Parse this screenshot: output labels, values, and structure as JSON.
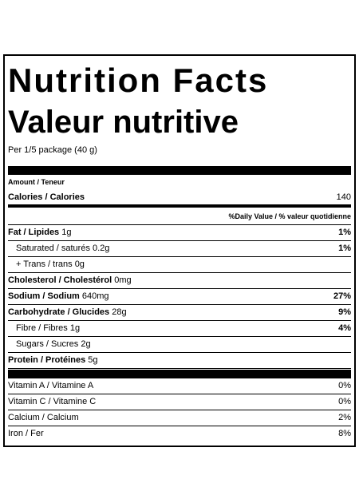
{
  "header": {
    "title": "Nutrition Facts",
    "title_fr": "Valeur nutritive",
    "serving": "Per 1/5 package (40 g)"
  },
  "amount_header": "Amount / Teneur",
  "calories": {
    "label": "Calories / Calories",
    "value": "140"
  },
  "dv_header": "%Daily Value / % valeur quotidienne",
  "nutrients": [
    {
      "label": "Fat / Lipides",
      "amount": "1g",
      "dv": "1%"
    },
    {
      "label": "Saturated / saturés",
      "amount": "0.2g",
      "dv": "1%"
    },
    {
      "label": "+ Trans / trans",
      "amount": "0g"
    },
    {
      "label": "Cholesterol / Cholestérol",
      "amount": "0mg"
    },
    {
      "label": "Sodium / Sodium",
      "amount": "640mg",
      "dv": "27%"
    },
    {
      "label": "Carbohydrate / Glucides",
      "amount": "28g",
      "dv": "9%"
    },
    {
      "label": "Fibre / Fibres",
      "amount": "1g",
      "dv": "4%"
    },
    {
      "label": "Sugars / Sucres",
      "amount": "2g"
    },
    {
      "label": "Protein / Protéines",
      "amount": "5g"
    }
  ],
  "vitamins": [
    {
      "label": "Vitamin A / Vitamine A",
      "dv": "0%"
    },
    {
      "label": "Vitamin C / Vitamine C",
      "dv": "0%"
    },
    {
      "label": "Calcium / Calcium",
      "dv": "2%"
    },
    {
      "label": "Iron / Fer",
      "dv": "8%"
    }
  ]
}
